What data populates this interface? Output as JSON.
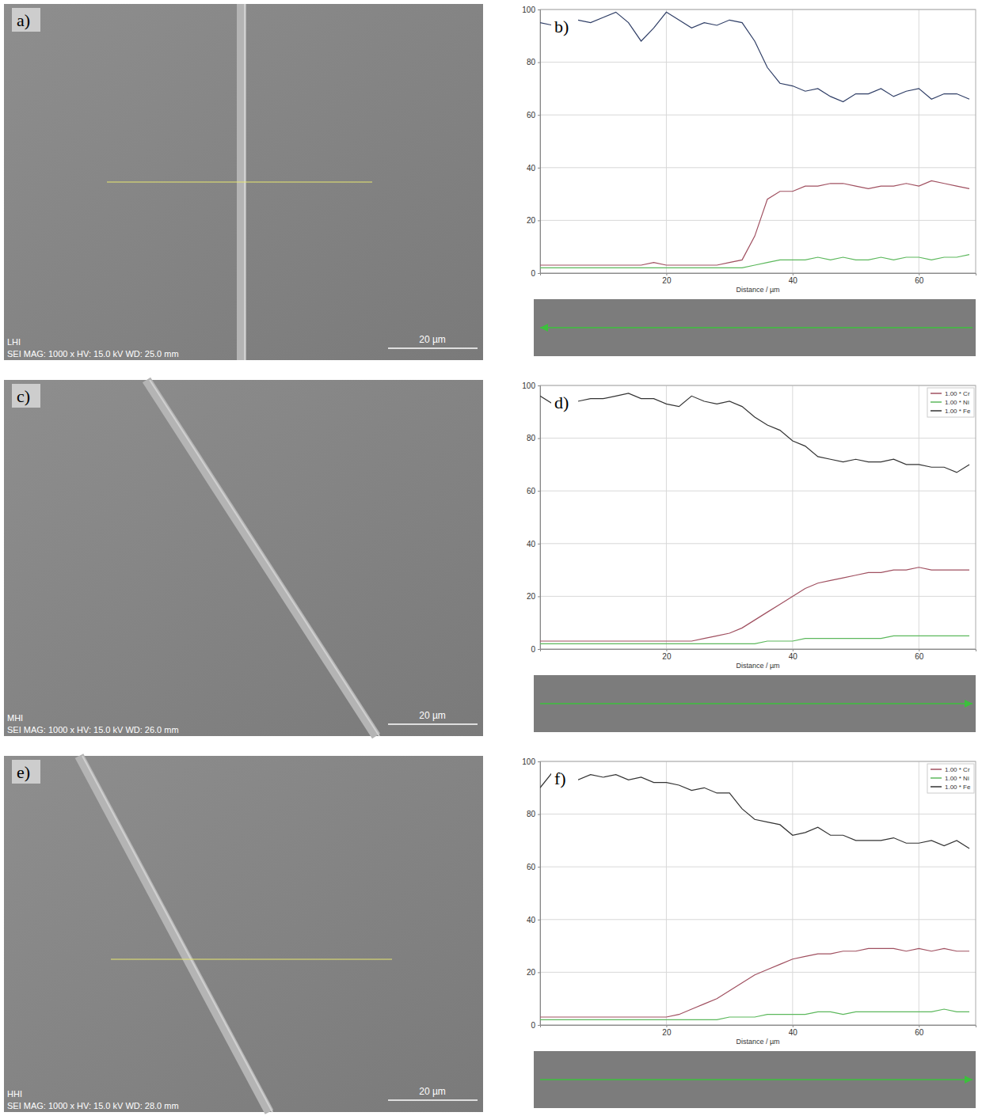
{
  "chart_data": [
    {
      "type": "line",
      "panel_label": "b)",
      "x_label": "Distance / µm",
      "x": [
        0,
        2,
        4,
        6,
        8,
        10,
        12,
        14,
        16,
        18,
        20,
        22,
        24,
        26,
        28,
        30,
        32,
        34,
        36,
        38,
        40,
        42,
        44,
        46,
        48,
        50,
        52,
        54,
        56,
        58,
        60,
        62,
        64,
        66,
        68
      ],
      "xlim": [
        0,
        69
      ],
      "xticks": [
        20,
        40,
        60
      ],
      "ylim": [
        0,
        100
      ],
      "yticks": [
        0,
        20,
        40,
        60,
        80,
        100
      ],
      "grid": true,
      "series": [
        {
          "color": "#a05060",
          "values": [
            3,
            3,
            3,
            3,
            3,
            3,
            3,
            3,
            3,
            4,
            3,
            3,
            3,
            3,
            3,
            4,
            5,
            14,
            28,
            31,
            31,
            33,
            33,
            34,
            34,
            33,
            32,
            33,
            33,
            34,
            33,
            35,
            34,
            33,
            32
          ]
        },
        {
          "color": "#5cb85c",
          "values": [
            2,
            2,
            2,
            2,
            2,
            2,
            2,
            2,
            2,
            2,
            2,
            2,
            2,
            2,
            2,
            2,
            2,
            3,
            4,
            5,
            5,
            5,
            6,
            5,
            6,
            5,
            5,
            6,
            5,
            6,
            6,
            5,
            6,
            6,
            7
          ]
        },
        {
          "color": "#2f3e66",
          "values": [
            95,
            94,
            96,
            96,
            95,
            97,
            99,
            95,
            88,
            93,
            99,
            96,
            93,
            95,
            94,
            96,
            95,
            88,
            78,
            72,
            71,
            69,
            70,
            67,
            65,
            68,
            68,
            70,
            67,
            69,
            70,
            66,
            68,
            68,
            66
          ]
        }
      ]
    },
    {
      "type": "line",
      "panel_label": "d)",
      "x_label": "Distance / µm",
      "x": [
        0,
        2,
        4,
        6,
        8,
        10,
        12,
        14,
        16,
        18,
        20,
        22,
        24,
        26,
        28,
        30,
        32,
        34,
        36,
        38,
        40,
        42,
        44,
        46,
        48,
        50,
        52,
        54,
        56,
        58,
        60,
        62,
        64,
        66,
        68
      ],
      "xlim": [
        0,
        69
      ],
      "xticks": [
        20,
        40,
        60
      ],
      "ylim": [
        0,
        100
      ],
      "yticks": [
        0,
        20,
        40,
        60,
        80,
        100
      ],
      "grid": true,
      "legend": "top-right",
      "series": [
        {
          "name": "1.00 * Cr",
          "color": "#a05060",
          "values": [
            3,
            3,
            3,
            3,
            3,
            3,
            3,
            3,
            3,
            3,
            3,
            3,
            3,
            4,
            5,
            6,
            8,
            11,
            14,
            17,
            20,
            23,
            25,
            26,
            27,
            28,
            29,
            29,
            30,
            30,
            31,
            30,
            30,
            30,
            30
          ]
        },
        {
          "name": "1.00 * Ni",
          "color": "#5cb85c",
          "values": [
            2,
            2,
            2,
            2,
            2,
            2,
            2,
            2,
            2,
            2,
            2,
            2,
            2,
            2,
            2,
            2,
            2,
            2,
            3,
            3,
            3,
            4,
            4,
            4,
            4,
            4,
            4,
            4,
            5,
            5,
            5,
            5,
            5,
            5,
            5
          ]
        },
        {
          "name": "1.00 * Fe",
          "color": "#333333",
          "values": [
            96,
            93,
            97,
            94,
            95,
            95,
            96,
            97,
            95,
            95,
            93,
            92,
            96,
            94,
            93,
            94,
            92,
            88,
            85,
            83,
            79,
            77,
            73,
            72,
            71,
            72,
            71,
            71,
            72,
            70,
            70,
            69,
            69,
            67,
            70
          ]
        }
      ]
    },
    {
      "type": "line",
      "panel_label": "f)",
      "x_label": "Distance / µm",
      "x": [
        0,
        2,
        4,
        6,
        8,
        10,
        12,
        14,
        16,
        18,
        20,
        22,
        24,
        26,
        28,
        30,
        32,
        34,
        36,
        38,
        40,
        42,
        44,
        46,
        48,
        50,
        52,
        54,
        56,
        58,
        60,
        62,
        64,
        66,
        68
      ],
      "xlim": [
        0,
        69
      ],
      "xticks": [
        20,
        40,
        60
      ],
      "ylim": [
        0,
        100
      ],
      "yticks": [
        0,
        20,
        40,
        60,
        80,
        100
      ],
      "grid": true,
      "legend": "top-right",
      "series": [
        {
          "name": "1.00 * Cr",
          "color": "#a05060",
          "values": [
            3,
            3,
            3,
            3,
            3,
            3,
            3,
            3,
            3,
            3,
            3,
            4,
            6,
            8,
            10,
            13,
            16,
            19,
            21,
            23,
            25,
            26,
            27,
            27,
            28,
            28,
            29,
            29,
            29,
            28,
            29,
            28,
            29,
            28,
            28
          ]
        },
        {
          "name": "1.00 * Ni",
          "color": "#5cb85c",
          "values": [
            2,
            2,
            2,
            2,
            2,
            2,
            2,
            2,
            2,
            2,
            2,
            2,
            2,
            2,
            2,
            3,
            3,
            3,
            4,
            4,
            4,
            4,
            5,
            5,
            4,
            5,
            5,
            5,
            5,
            5,
            5,
            5,
            6,
            5,
            5
          ]
        },
        {
          "name": "1.00 * Fe",
          "color": "#333333",
          "values": [
            90,
            96,
            98,
            93,
            95,
            94,
            95,
            93,
            94,
            92,
            92,
            91,
            89,
            90,
            88,
            88,
            82,
            78,
            77,
            76,
            72,
            73,
            75,
            72,
            72,
            70,
            70,
            70,
            71,
            69,
            69,
            70,
            68,
            70,
            67
          ]
        }
      ]
    }
  ],
  "images": [
    {
      "panel_label": "a)",
      "sample": "LHI",
      "info": "SEI MAG: 1000 x HV: 15.0 kV WD: 25.0 mm",
      "scale_bar": "20 µm"
    },
    {
      "panel_label": "c)",
      "sample": "MHI",
      "info": "SEI MAG: 1000 x HV: 15.0 kV WD: 26.0 mm",
      "scale_bar": "20 µm"
    },
    {
      "panel_label": "e)",
      "sample": "HHI",
      "info": "SEI MAG: 1000 x HV: 15.0 kV WD: 28.0 mm",
      "scale_bar": "20 µm"
    }
  ]
}
